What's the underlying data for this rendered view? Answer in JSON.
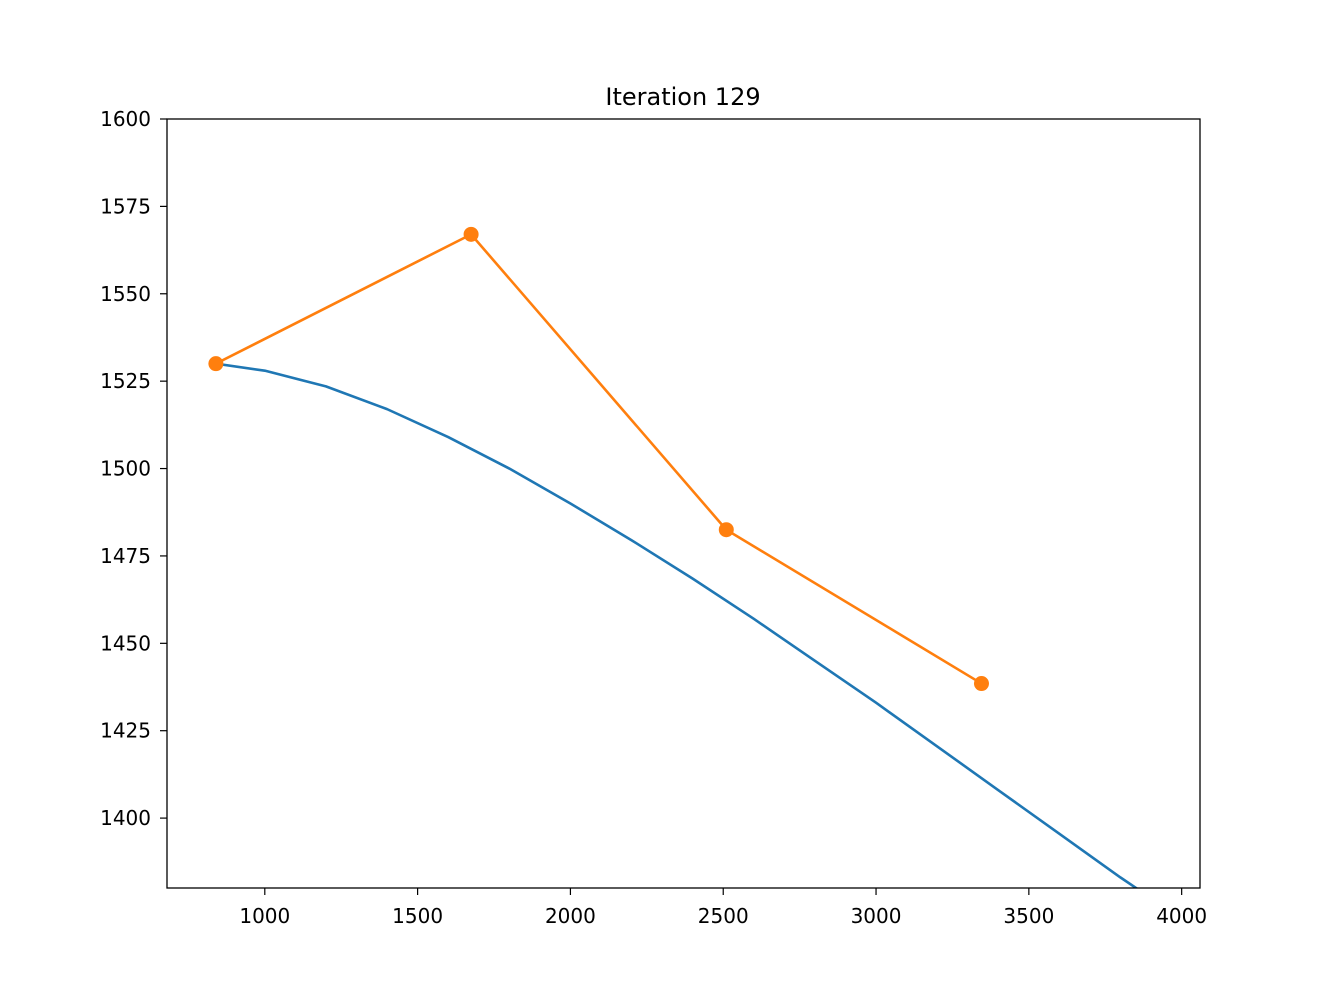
{
  "chart_data": {
    "type": "line",
    "title": "Iteration 129",
    "xlabel": "",
    "ylabel": "",
    "xlim": [
      680,
      4060
    ],
    "ylim": [
      1380,
      1600
    ],
    "xticks": [
      1000,
      1500,
      2000,
      2500,
      3000,
      3500,
      4000
    ],
    "yticks": [
      1400,
      1425,
      1450,
      1475,
      1500,
      1525,
      1550,
      1575,
      1600
    ],
    "grid": false,
    "legend": "none",
    "series": [
      {
        "color": "#1f77b4",
        "marker": "none",
        "x": [
          840,
          1000,
          1200,
          1400,
          1600,
          1800,
          2000,
          2200,
          2400,
          2600,
          2800,
          3000,
          3200,
          3400,
          3600,
          3800,
          3910
        ],
        "y": [
          1530,
          1528,
          1523.5,
          1517,
          1509,
          1500,
          1490,
          1479.5,
          1468.5,
          1457,
          1445,
          1433,
          1420.5,
          1408,
          1395.5,
          1383,
          1376.5
        ]
      },
      {
        "color": "#ff7f0e",
        "marker": "circle",
        "x": [
          840,
          1675,
          2510,
          3345
        ],
        "y": [
          1530,
          1567,
          1482.5,
          1438.5
        ]
      }
    ]
  }
}
